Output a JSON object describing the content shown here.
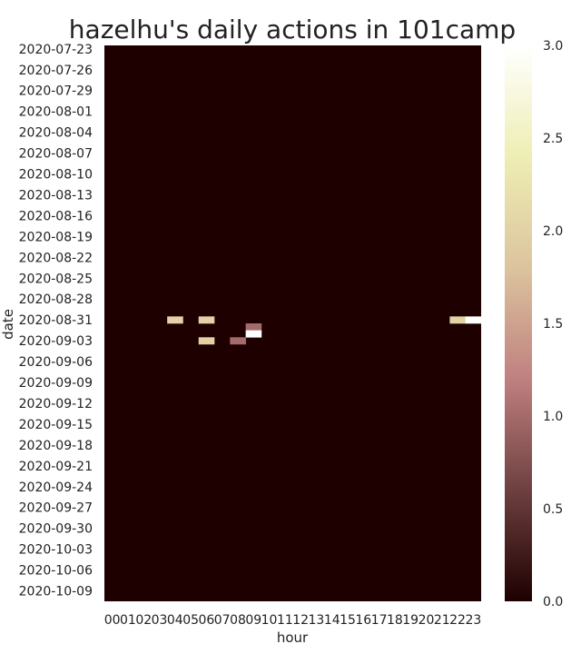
{
  "chart_data": {
    "type": "heatmap",
    "title": "hazelhu's daily actions in 101camp",
    "xlabel": "hour",
    "ylabel": "date",
    "start_date": "2020-07-23",
    "num_dates": 80,
    "ytick_labels": [
      "2020-07-23",
      "2020-07-26",
      "2020-07-29",
      "2020-08-01",
      "2020-08-04",
      "2020-08-07",
      "2020-08-10",
      "2020-08-13",
      "2020-08-16",
      "2020-08-19",
      "2020-08-22",
      "2020-08-25",
      "2020-08-28",
      "2020-08-31",
      "2020-09-03",
      "2020-09-06",
      "2020-09-09",
      "2020-09-12",
      "2020-09-15",
      "2020-09-18",
      "2020-09-21",
      "2020-09-24",
      "2020-09-27",
      "2020-09-30",
      "2020-10-03",
      "2020-10-06",
      "2020-10-09"
    ],
    "hours": [
      "00",
      "01",
      "02",
      "03",
      "04",
      "05",
      "06",
      "07",
      "08",
      "09",
      "10",
      "11",
      "12",
      "13",
      "14",
      "15",
      "16",
      "17",
      "18",
      "19",
      "20",
      "21",
      "22",
      "23"
    ],
    "cells": [
      {
        "date": "2020-08-31",
        "hour": "04",
        "value": 2
      },
      {
        "date": "2020-08-31",
        "hour": "06",
        "value": 2
      },
      {
        "date": "2020-08-31",
        "hour": "22",
        "value": 2
      },
      {
        "date": "2020-08-31",
        "hour": "23",
        "value": 3
      },
      {
        "date": "2020-09-01",
        "hour": "09",
        "value": 1
      },
      {
        "date": "2020-09-02",
        "hour": "09",
        "value": 3
      },
      {
        "date": "2020-09-03",
        "hour": "06",
        "value": 2
      },
      {
        "date": "2020-09-03",
        "hour": "08",
        "value": 1
      }
    ],
    "default_value": 0,
    "colorbar": {
      "vmin": 0.0,
      "vmax": 3.0,
      "ticks": [
        "0.0",
        "0.5",
        "1.0",
        "1.5",
        "2.0",
        "2.5",
        "3.0"
      ],
      "colormap": "pink",
      "colors": [
        "#1e0000",
        "#6e4040",
        "#c08080",
        "#dcc49e",
        "#eeeeb4",
        "#ffffff"
      ]
    }
  }
}
